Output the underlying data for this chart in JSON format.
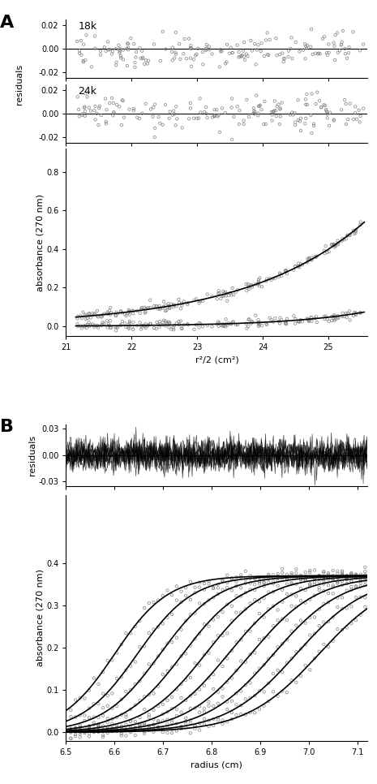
{
  "panel_A_label": "A",
  "panel_B_label": "B",
  "resid_18k_label": "18k",
  "resid_24k_label": "24k",
  "resid_A_ylim": [
    -0.025,
    0.025
  ],
  "resid_A_yticks": [
    -0.02,
    0.0,
    0.02
  ],
  "main_A_ylim": [
    -0.05,
    0.92
  ],
  "main_A_yticks": [
    0.0,
    0.2,
    0.4,
    0.6,
    0.8
  ],
  "main_A_xlim": [
    21.0,
    25.6
  ],
  "main_A_xticks": [
    21,
    22,
    23,
    24,
    25
  ],
  "main_A_xlabel": "r²/2 (cm²)",
  "main_A_ylabel": "absorbance (270 nm)",
  "resid_A_ylabel": "residuals",
  "resid_B_ylim": [
    -0.035,
    0.035
  ],
  "resid_B_yticks": [
    -0.03,
    0.0,
    0.03
  ],
  "main_B_ylim": [
    -0.02,
    0.56
  ],
  "main_B_yticks": [
    0.0,
    0.1,
    0.2,
    0.3,
    0.4
  ],
  "main_B_xlim": [
    6.5,
    7.12
  ],
  "main_B_xticks": [
    6.5,
    6.6,
    6.7,
    6.8,
    6.9,
    7.0,
    7.1
  ],
  "main_B_xlabel": "radius (cm)",
  "main_B_ylabel": "absorbance (270 nm)",
  "resid_B_ylabel": "residuals",
  "line_color": "black",
  "circle_color": "gray",
  "circle_size": 6,
  "circle_lw": 0.5,
  "bg_color": "white",
  "n_sedimentation_curves": 10,
  "seed_A": 42,
  "seed_B": 123
}
